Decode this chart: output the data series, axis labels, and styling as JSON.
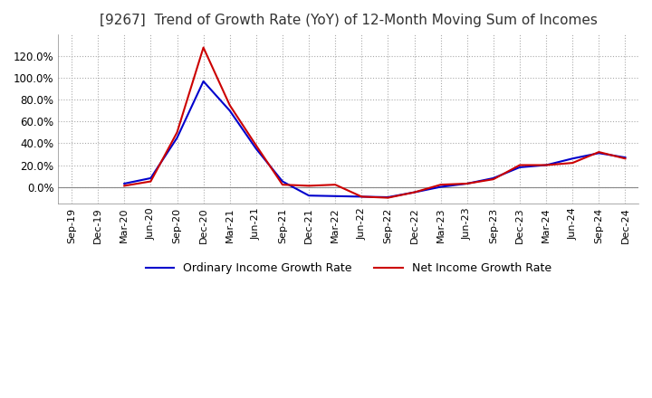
{
  "title": "[9267]  Trend of Growth Rate (YoY) of 12-Month Moving Sum of Incomes",
  "title_fontsize": 11,
  "legend_labels": [
    "Ordinary Income Growth Rate",
    "Net Income Growth Rate"
  ],
  "line_colors": [
    "#0000CC",
    "#CC0000"
  ],
  "background_color": "#FFFFFF",
  "plot_background": "#FFFFFF",
  "grid_color": "#AAAAAA",
  "x_labels": [
    "Sep-19",
    "Dec-19",
    "Mar-20",
    "Jun-20",
    "Sep-20",
    "Dec-20",
    "Mar-21",
    "Jun-21",
    "Sep-21",
    "Dec-21",
    "Mar-22",
    "Jun-22",
    "Sep-22",
    "Dec-22",
    "Mar-23",
    "Jun-23",
    "Sep-23",
    "Dec-23",
    "Mar-24",
    "Jun-24",
    "Sep-24",
    "Dec-24"
  ],
  "ordinary_income": [
    null,
    null,
    3.0,
    8.0,
    45.0,
    97.0,
    70.0,
    35.0,
    5.0,
    -8.0,
    -8.5,
    -9.0,
    -9.5,
    -5.0,
    0.0,
    3.0,
    8.0,
    18.0,
    20.0,
    26.0,
    31.0,
    27.0
  ],
  "net_income": [
    null,
    null,
    1.0,
    5.0,
    50.0,
    128.0,
    75.0,
    38.0,
    2.0,
    1.0,
    2.0,
    -9.0,
    -10.0,
    -5.0,
    2.0,
    3.0,
    7.0,
    20.0,
    20.0,
    22.0,
    32.0,
    26.0
  ],
  "ylim": [
    -15,
    140
  ],
  "yticks": [
    0.0,
    20.0,
    40.0,
    60.0,
    80.0,
    100.0,
    120.0
  ]
}
